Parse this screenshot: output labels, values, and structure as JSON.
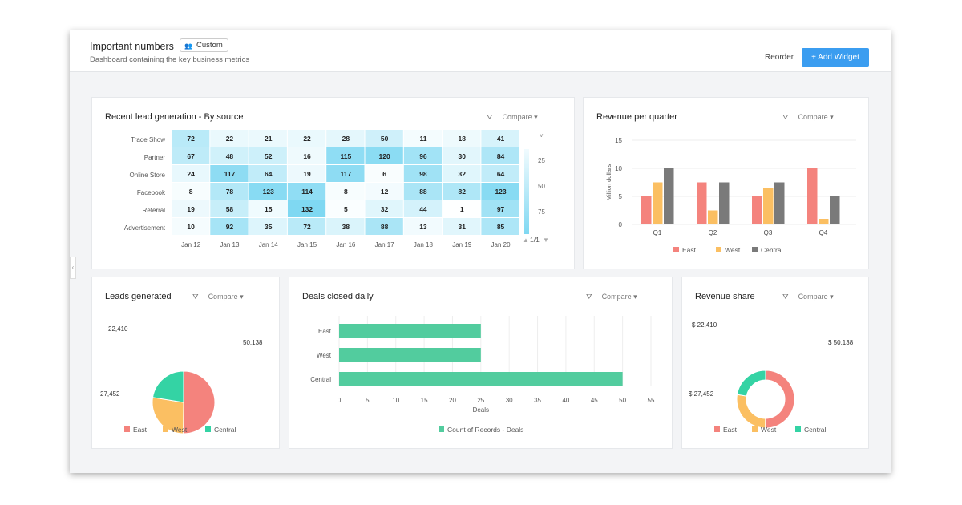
{
  "header": {
    "title": "Important numbers",
    "badge": "Custom",
    "subtitle": "Dashboard containing the key business metrics",
    "reorder": "Reorder",
    "add_widget": "+ Add Widget"
  },
  "compare_label": "Compare",
  "colors": {
    "east": "#f4837d",
    "west": "#fbbf62",
    "central": "#7a7a7a",
    "green": "#52cc9e",
    "heat": "#7fd8f2",
    "accent": "#3b9df0"
  },
  "heatmap": {
    "title": "Recent lead generation - By source",
    "rows": [
      "Trade Show",
      "Partner",
      "Online Store",
      "Facebook",
      "Referral",
      "Advertisement"
    ],
    "cols": [
      "Jan 12",
      "Jan 13",
      "Jan 14",
      "Jan 15",
      "Jan 16",
      "Jan 17",
      "Jan 18",
      "Jan 19",
      "Jan 20"
    ],
    "values": [
      [
        72,
        22,
        21,
        22,
        28,
        50,
        11,
        18,
        41
      ],
      [
        67,
        48,
        52,
        16,
        115,
        120,
        96,
        30,
        84
      ],
      [
        24,
        117,
        64,
        19,
        117,
        6,
        98,
        32,
        64
      ],
      [
        8,
        78,
        123,
        114,
        8,
        12,
        88,
        82,
        123
      ],
      [
        19,
        58,
        15,
        132,
        5,
        32,
        44,
        1,
        97
      ],
      [
        10,
        92,
        35,
        72,
        38,
        88,
        13,
        31,
        85
      ]
    ],
    "legend_ticks": [
      "25",
      "50",
      "75"
    ],
    "pager": "1/1"
  },
  "chart_data": [
    {
      "type": "bar",
      "title": "Revenue per quarter",
      "ylabel": "Million dollars",
      "categories": [
        "Q1",
        "Q2",
        "Q3",
        "Q4"
      ],
      "ylim": [
        0,
        15
      ],
      "yticks": [
        "0",
        "5",
        "10",
        "15"
      ],
      "legend": "bottom",
      "series": [
        {
          "name": "East",
          "values": [
            5,
            7.5,
            5,
            10
          ]
        },
        {
          "name": "West",
          "values": [
            7.5,
            2.5,
            6.5,
            1
          ]
        },
        {
          "name": "Central",
          "values": [
            10,
            7.5,
            7.5,
            5
          ]
        }
      ]
    },
    {
      "type": "pie",
      "title": "Leads generated",
      "categories": [
        "East",
        "West",
        "Central"
      ],
      "values": [
        50138,
        27452,
        22410
      ],
      "labels": [
        "50,138",
        "27,452",
        "22,410"
      ],
      "legend": "bottom"
    },
    {
      "type": "bar",
      "orientation": "horizontal",
      "title": "Deals closed daily",
      "categories": [
        "East",
        "West",
        "Central"
      ],
      "values": [
        25,
        25,
        50
      ],
      "xlabel": "Deals",
      "xlim": [
        0,
        55
      ],
      "xticks": [
        "0",
        "5",
        "10",
        "15",
        "20",
        "25",
        "30",
        "35",
        "40",
        "45",
        "50",
        "55"
      ],
      "series_name": "Count of Records - Deals",
      "legend": "bottom"
    },
    {
      "type": "pie",
      "donut": true,
      "title": "Revenue share",
      "categories": [
        "East",
        "West",
        "Central"
      ],
      "values": [
        50138,
        27452,
        22410
      ],
      "labels": [
        "$ 50,138",
        "$ 27,452",
        "$ 22,410"
      ],
      "legend": "bottom"
    }
  ]
}
